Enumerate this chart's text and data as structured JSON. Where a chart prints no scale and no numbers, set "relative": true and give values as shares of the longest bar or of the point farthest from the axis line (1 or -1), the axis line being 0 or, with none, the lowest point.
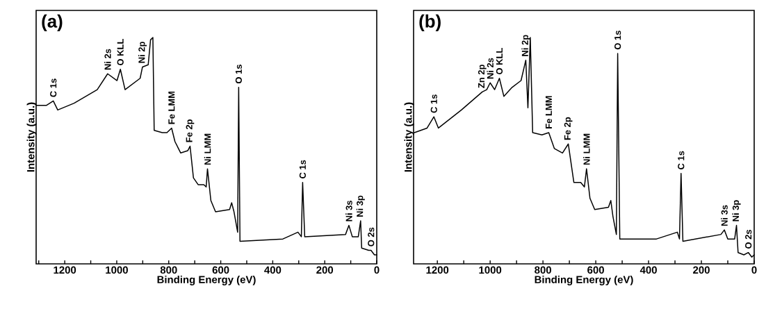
{
  "chart_data": [
    {
      "type": "line",
      "title": "(a)",
      "xlabel": "Binding Energy (eV)",
      "ylabel": "Intensity (a.u.)",
      "relative": true,
      "color": "#000000",
      "xlim": [
        1310,
        0
      ],
      "xticks": [
        0,
        {
          "value": 100,
          "label": null
        },
        200,
        {
          "value": 300,
          "label": null
        },
        400,
        {
          "value": 500,
          "label": null
        },
        600,
        {
          "value": 700,
          "label": null
        },
        800,
        {
          "value": 900,
          "label": null
        },
        1000,
        {
          "value": 1100,
          "label": null
        },
        1200,
        {
          "value": 1300,
          "label": null
        }
      ],
      "x": [
        1310,
        1271,
        1244,
        1227,
        1164,
        1075,
        1035,
        999,
        986,
        968,
        910,
        901,
        879,
        870,
        861,
        856,
        825,
        807,
        789,
        776,
        754,
        727,
        718,
        705,
        687,
        665,
        656,
        651,
        638,
        620,
        566,
        558,
        549,
        535,
        531,
        526,
        361,
        303,
        290,
        285,
        277,
        120,
        107,
        94,
        71,
        62,
        58,
        31,
        22,
        9,
        0
      ],
      "values": [
        0.7,
        0.7,
        0.72,
        0.68,
        0.71,
        0.77,
        0.84,
        0.81,
        0.86,
        0.77,
        0.82,
        0.87,
        0.88,
        0.99,
        1.0,
        0.59,
        0.58,
        0.58,
        0.6,
        0.54,
        0.49,
        0.5,
        0.52,
        0.38,
        0.35,
        0.35,
        0.34,
        0.42,
        0.28,
        0.23,
        0.24,
        0.27,
        0.23,
        0.14,
        0.78,
        0.1,
        0.11,
        0.14,
        0.12,
        0.36,
        0.12,
        0.13,
        0.17,
        0.12,
        0.12,
        0.19,
        0.07,
        0.06,
        0.06,
        0.04,
        0.04
      ],
      "annotations": [
        {
          "text": "C 1s",
          "x": 1244,
          "y": 0.72
        },
        {
          "text": "Ni 2s",
          "x": 1035,
          "y": 0.84
        },
        {
          "text": "O KLL",
          "x": 986,
          "y": 0.86
        },
        {
          "text": "Ni 2p",
          "x": 901,
          "y": 0.87
        },
        {
          "text": "Fe LMM",
          "x": 789,
          "y": 0.6
        },
        {
          "text": "Fe 2p",
          "x": 718,
          "y": 0.52
        },
        {
          "text": "Ni LMM",
          "x": 651,
          "y": 0.42
        },
        {
          "text": "O 1s",
          "x": 531,
          "y": 0.78
        },
        {
          "text": "C 1s",
          "x": 285,
          "y": 0.36
        },
        {
          "text": "Ni 3s",
          "x": 107,
          "y": 0.17
        },
        {
          "text": "Ni 3p",
          "x": 62,
          "y": 0.19
        },
        {
          "text": "O 2s",
          "x": 22,
          "y": 0.06
        }
      ]
    },
    {
      "type": "line",
      "title": "(b)",
      "xlabel": "Binding Energy (eV)",
      "ylabel": "Intensity (a.u.)",
      "relative": true,
      "color": "#000000",
      "xlim": [
        1290,
        0
      ],
      "xticks": [
        0,
        {
          "value": 100,
          "label": null
        },
        200,
        {
          "value": 300,
          "label": null
        },
        400,
        {
          "value": 500,
          "label": null
        },
        600,
        {
          "value": 700,
          "label": null
        },
        800,
        {
          "value": 900,
          "label": null
        },
        1000,
        {
          "value": 1100,
          "label": null
        },
        1200
      ],
      "x": [
        1287,
        1239,
        1213,
        1196,
        1109,
        1030,
        1013,
        1000,
        983,
        965,
        948,
        917,
        883,
        865,
        857,
        848,
        839,
        804,
        778,
        757,
        726,
        704,
        683,
        657,
        643,
        635,
        622,
        604,
        552,
        543,
        535,
        522,
        517,
        509,
        370,
        291,
        283,
        277,
        270,
        126,
        113,
        100,
        74,
        67,
        61,
        39,
        22,
        9,
        0
      ],
      "values": [
        0.58,
        0.6,
        0.65,
        0.6,
        0.68,
        0.76,
        0.77,
        0.8,
        0.77,
        0.82,
        0.74,
        0.78,
        0.81,
        0.9,
        0.69,
        1.0,
        0.58,
        0.57,
        0.58,
        0.51,
        0.49,
        0.53,
        0.36,
        0.36,
        0.34,
        0.42,
        0.29,
        0.24,
        0.25,
        0.28,
        0.21,
        0.13,
        0.93,
        0.11,
        0.11,
        0.14,
        0.11,
        0.4,
        0.1,
        0.13,
        0.15,
        0.11,
        0.11,
        0.17,
        0.05,
        0.04,
        0.05,
        0.03,
        0.04
      ],
      "annotations": [
        {
          "text": "C 1s",
          "x": 1213,
          "y": 0.65
        },
        {
          "text": "Zn 2p",
          "x": 1030,
          "y": 0.76
        },
        {
          "text": "Ni 2s",
          "x": 1000,
          "y": 0.8
        },
        {
          "text": "O KLL",
          "x": 965,
          "y": 0.82
        },
        {
          "text": "Ni 2p",
          "x": 865,
          "y": 0.9
        },
        {
          "text": "Fe LMM",
          "x": 778,
          "y": 0.58
        },
        {
          "text": "Fe 2p",
          "x": 704,
          "y": 0.53
        },
        {
          "text": "Ni LMM",
          "x": 635,
          "y": 0.42
        },
        {
          "text": "O 1s",
          "x": 517,
          "y": 0.93
        },
        {
          "text": "C 1s",
          "x": 277,
          "y": 0.4
        },
        {
          "text": "Ni 3s",
          "x": 113,
          "y": 0.15
        },
        {
          "text": "Ni 3p",
          "x": 67,
          "y": 0.17
        },
        {
          "text": "O 2s",
          "x": 22,
          "y": 0.05
        }
      ]
    }
  ]
}
